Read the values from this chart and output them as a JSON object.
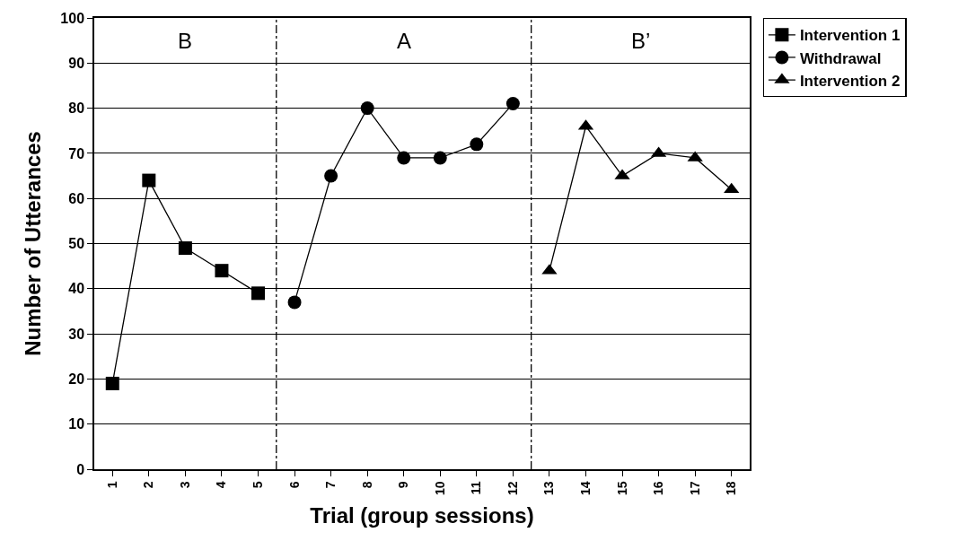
{
  "chart_data": {
    "type": "line",
    "xlabel": "Trial (group sessions)",
    "ylabel": "Number of Utterances",
    "xlim": [
      0.5,
      18.5
    ],
    "xticks": [
      1,
      2,
      3,
      4,
      5,
      6,
      7,
      8,
      9,
      10,
      11,
      12,
      13,
      14,
      15,
      16,
      17,
      18
    ],
    "ylim": [
      0,
      100
    ],
    "yticks": [
      0,
      10,
      20,
      30,
      40,
      50,
      60,
      70,
      80,
      90,
      100
    ],
    "grid": "y",
    "legend": "top right",
    "series": [
      {
        "name": "Intervention 1",
        "color": "#000000",
        "marker": "square",
        "x": [
          1,
          2,
          3,
          4,
          5
        ],
        "values": [
          19,
          64,
          49,
          44,
          39
        ]
      },
      {
        "name": "Withdrawal",
        "color": "#000000",
        "marker": "circle",
        "x": [
          6,
          7,
          8,
          9,
          10,
          11,
          12
        ],
        "values": [
          37,
          65,
          80,
          69,
          69,
          72,
          81
        ]
      },
      {
        "name": "Intervention 2",
        "color": "#000000",
        "marker": "triangle",
        "x": [
          13,
          14,
          15,
          16,
          17,
          18
        ],
        "values": [
          44,
          76,
          65,
          70,
          69,
          62
        ]
      }
    ],
    "ref_lines": [
      {
        "axis": "x",
        "value": 5.5,
        "line_style": "dashdot",
        "color": "#000000"
      },
      {
        "axis": "x",
        "value": 12.5,
        "line_style": "dashdot",
        "color": "#000000"
      }
    ],
    "annotations": [
      "B",
      "A",
      "B’"
    ]
  }
}
